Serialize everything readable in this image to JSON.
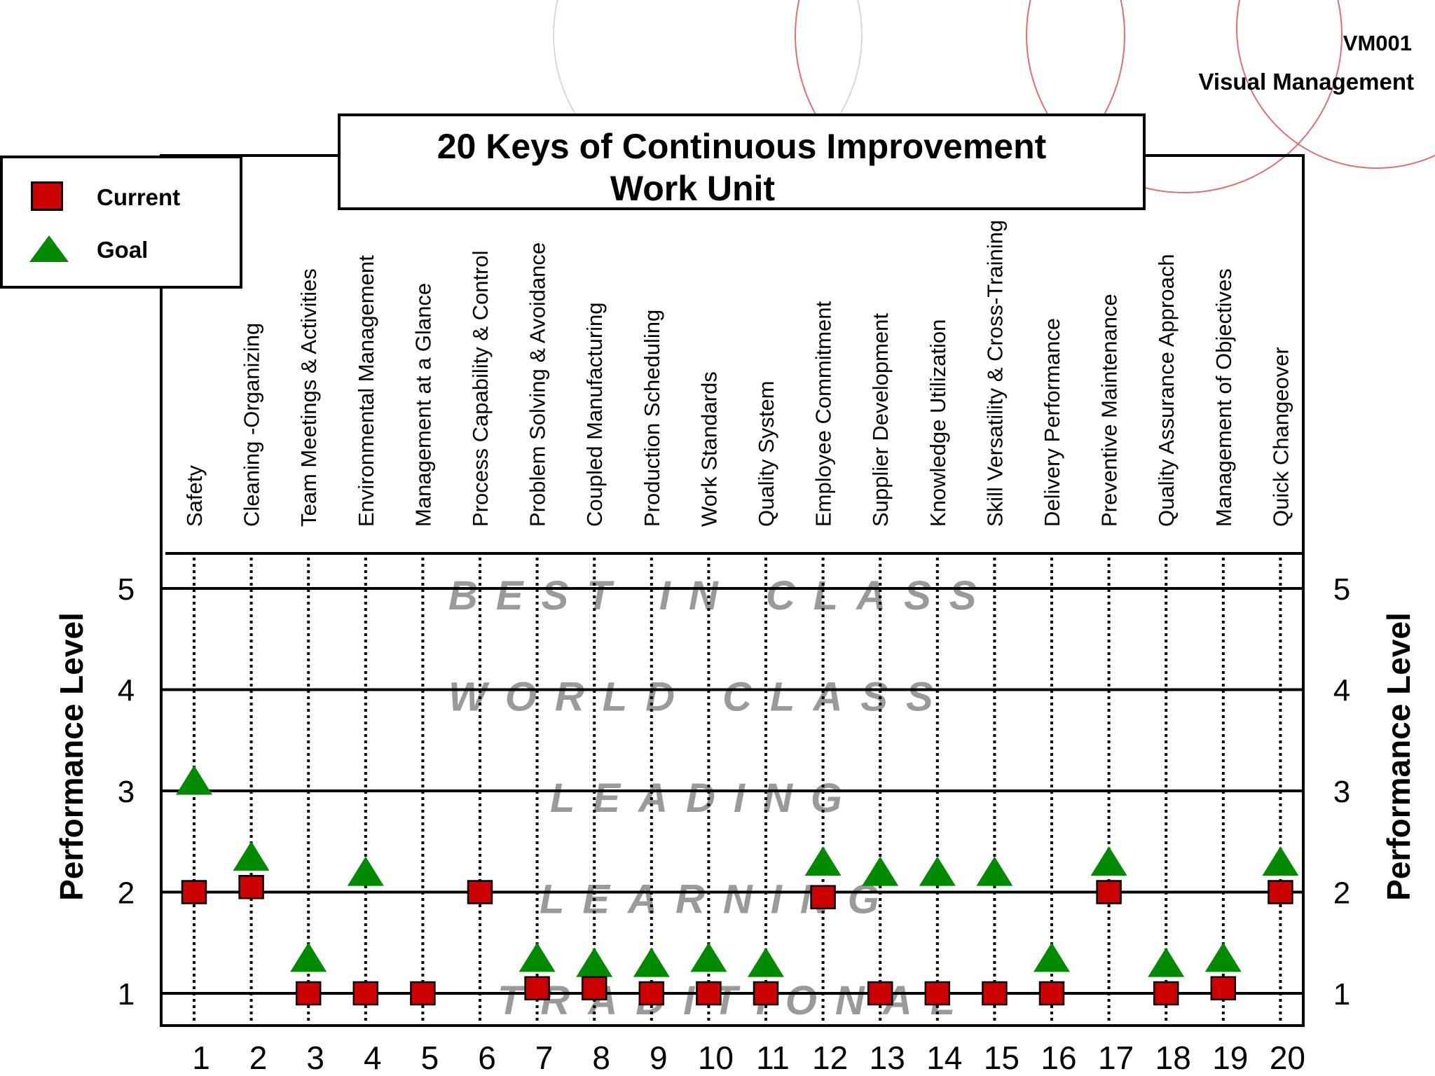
{
  "header": {
    "doc_code": "VM001",
    "doc_title": "Visual Management"
  },
  "title": {
    "line1": "20 Keys of Continuous Improvement",
    "line2": "Work Unit"
  },
  "legend": {
    "current_label": "Current",
    "goal_label": "Goal"
  },
  "colors": {
    "current": "#cc0000",
    "goal": "#008a00",
    "band_text": "#9a9a9a",
    "decor_circle_gray": "#d9d9d9",
    "decor_circle_red": "#e07070"
  },
  "chart_data": {
    "type": "scatter",
    "ylabel": "Performance Level",
    "ylim": [
      1,
      5
    ],
    "y_ticks": [
      1,
      2,
      3,
      4,
      5
    ],
    "x_ticks": [
      "1",
      "2",
      "3",
      "4",
      "5",
      "6",
      "7",
      "8",
      "9",
      "10",
      "11",
      "12",
      "13",
      "14",
      "15",
      "16",
      "17",
      "18",
      "19",
      "20"
    ],
    "categories": [
      "Safety",
      "Cleaning -Organizing",
      "Team Meetings & Activities",
      "Environmental Management",
      "Management at a Glance",
      "Process  Capability & Control",
      "Problem Solving & Avoidance",
      "Coupled Manufacturing",
      "Production Scheduling",
      "Work Standards",
      "Quality System",
      "Employee Commitment",
      "Supplier Development",
      "Knowledge Utilization",
      "Skill Versatility & Cross-Training",
      "Delivery Performance",
      "Preventive Maintenance",
      "Quality Assurance Approach",
      "Management of Objectives",
      "Quick Changeover"
    ],
    "bands": [
      {
        "level": 5,
        "label": "BEST  IN  CLASS"
      },
      {
        "level": 4,
        "label": "WORLD  CLASS"
      },
      {
        "level": 3,
        "label": "LEADING"
      },
      {
        "level": 2,
        "label": "LEARNING"
      },
      {
        "level": 1,
        "label": "TRADITIONAL"
      }
    ],
    "series": [
      {
        "name": "Current",
        "marker": "square",
        "values": [
          2.0,
          2.05,
          1.0,
          1.0,
          1.0,
          2.0,
          1.05,
          1.05,
          1.0,
          1.0,
          1.0,
          1.95,
          1.0,
          1.0,
          1.0,
          1.0,
          2.0,
          1.0,
          1.05,
          2.0
        ]
      },
      {
        "name": "Goal",
        "marker": "triangle",
        "values": [
          3.1,
          2.35,
          1.35,
          2.2,
          null,
          null,
          1.35,
          1.3,
          1.3,
          1.35,
          1.3,
          2.3,
          2.2,
          2.2,
          2.2,
          1.35,
          2.3,
          1.3,
          1.35,
          2.3
        ]
      }
    ]
  }
}
